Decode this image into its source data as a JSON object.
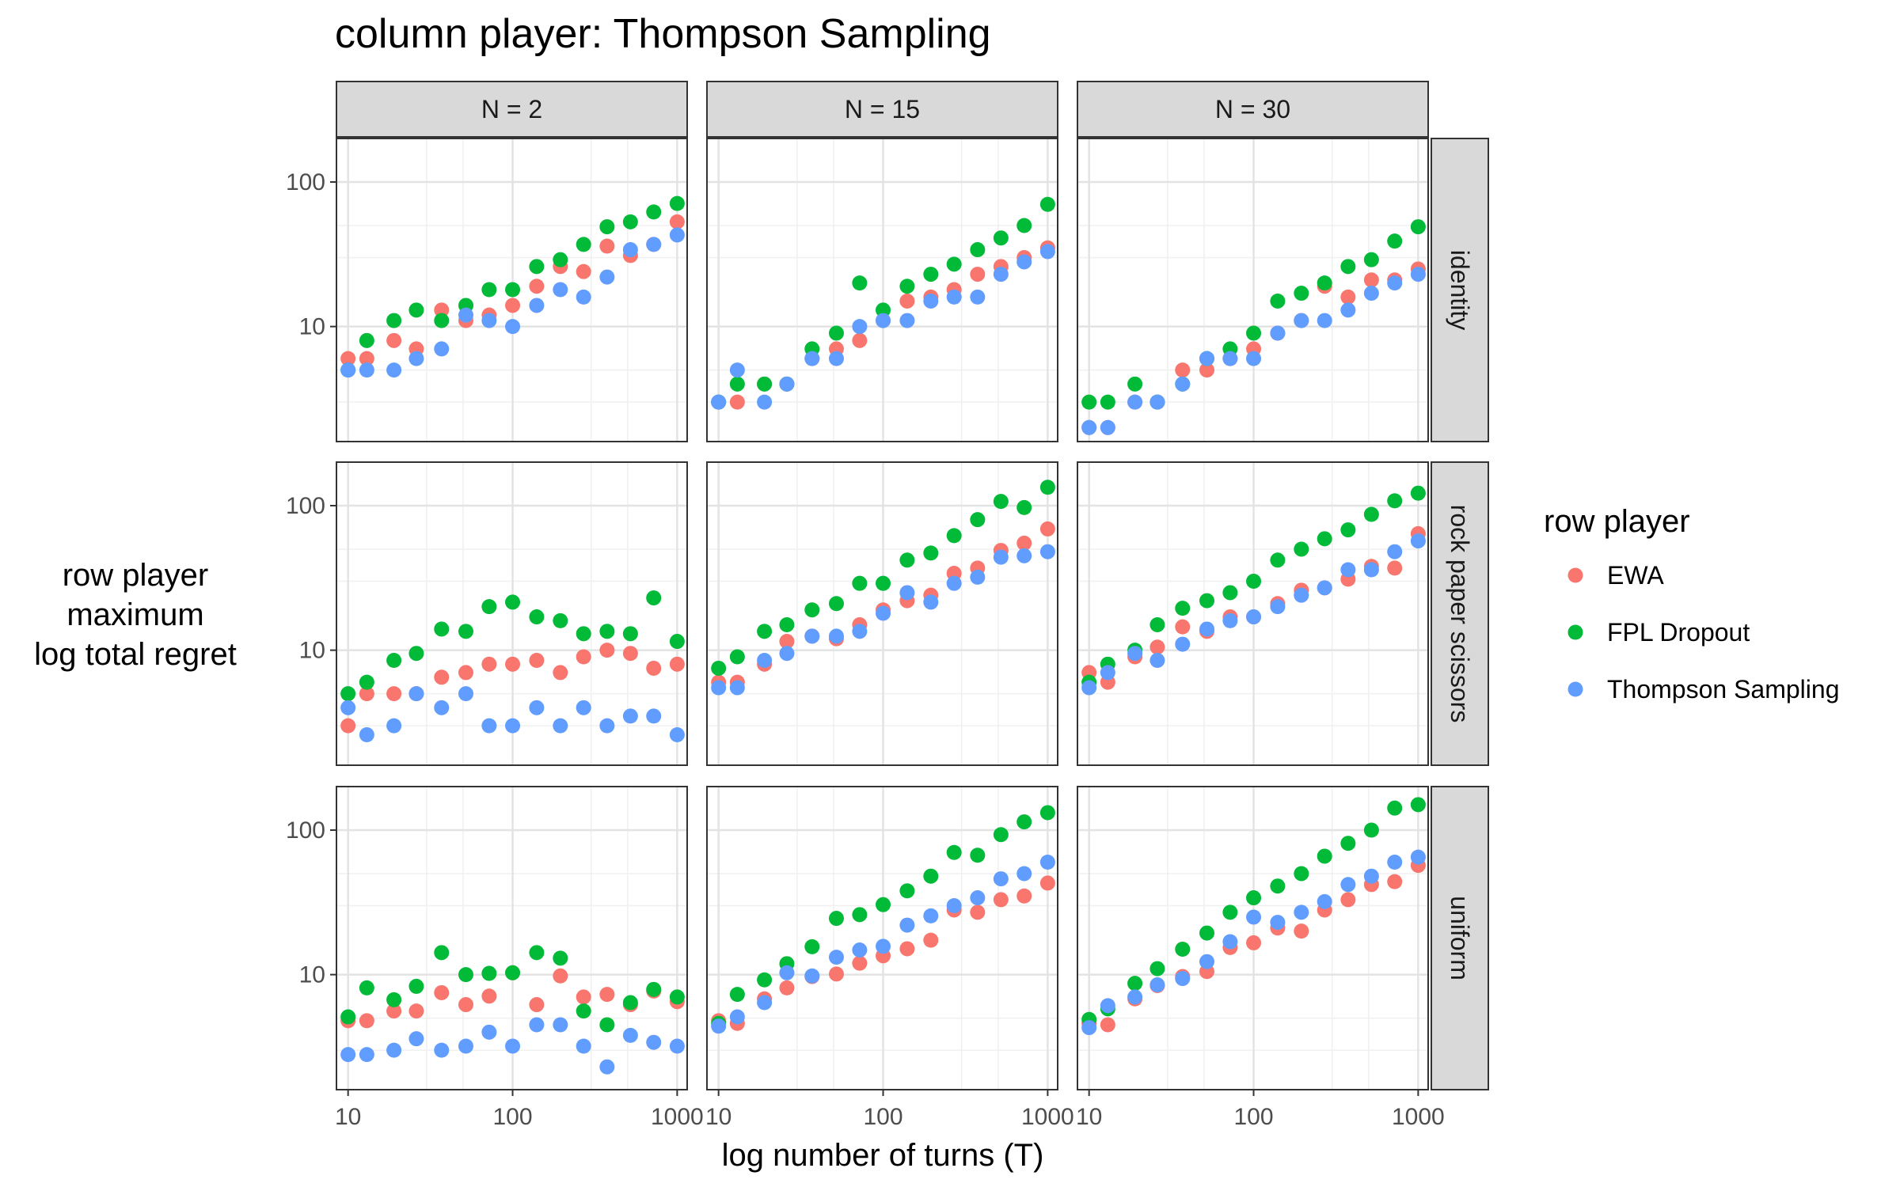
{
  "chart_data": {
    "type": "scatter",
    "title": "column player: Thompson Sampling",
    "xlabel": "log number of turns (T)",
    "ylabel_lines": [
      "row player",
      "maximum",
      "log total regret"
    ],
    "x_scale": "log10",
    "y_scale": "log10",
    "xlim": [
      8.5,
      1150
    ],
    "ylim": [
      1.6,
      200
    ],
    "x_ticks": [
      10,
      100,
      1000
    ],
    "x_tick_labels": [
      "10",
      "100",
      "1000"
    ],
    "y_ticks": [
      10,
      100
    ],
    "y_tick_labels": [
      "10",
      "100"
    ],
    "grid": true,
    "legend": {
      "title": "row player",
      "position": "right",
      "entries": [
        {
          "name": "EWA",
          "color": "#F8766D"
        },
        {
          "name": "FPL Dropout",
          "color": "#00BA38"
        },
        {
          "name": "Thompson Sampling",
          "color": "#619CFF"
        }
      ]
    },
    "col_facets": [
      "N = 2",
      "N = 15",
      "N = 30"
    ],
    "row_facets": [
      "identity",
      "rock paper scissors",
      "uniform"
    ],
    "x": [
      10,
      13,
      19,
      26,
      37,
      52,
      72,
      100,
      140,
      195,
      270,
      375,
      520,
      720,
      1000
    ],
    "panels": [
      {
        "row": "identity",
        "col": "N = 2",
        "series": [
          {
            "name": "EWA",
            "values": [
              6,
              6,
              8,
              7,
              13,
              11,
              12,
              14,
              19,
              26,
              24,
              36,
              31,
              37,
              53
            ]
          },
          {
            "name": "FPL Dropout",
            "values": [
              5,
              8,
              11,
              13,
              11,
              14,
              18,
              18,
              26,
              29,
              37,
              49,
              53,
              62,
              71
            ]
          },
          {
            "name": "Thompson Sampling",
            "values": [
              5,
              5,
              5,
              6,
              7,
              12,
              11,
              10,
              14,
              18,
              16,
              22,
              34,
              37,
              43
            ]
          }
        ]
      },
      {
        "row": "identity",
        "col": "N = 15",
        "series": [
          {
            "name": "EWA",
            "values": [
              3,
              3,
              4,
              4,
              6,
              7,
              8,
              11,
              15,
              16,
              18,
              23,
              26,
              30,
              35
            ]
          },
          {
            "name": "FPL Dropout",
            "values": [
              3,
              4,
              4,
              4,
              7,
              9,
              20,
              13,
              19,
              23,
              27,
              34,
              41,
              50,
              70
            ]
          },
          {
            "name": "Thompson Sampling",
            "values": [
              3,
              5,
              3,
              4,
              6,
              6,
              10,
              11,
              11,
              15,
              16,
              16,
              23,
              28,
              33
            ]
          }
        ]
      },
      {
        "row": "identity",
        "col": "N = 30",
        "series": [
          {
            "name": "EWA",
            "values": [
              2,
              2,
              3,
              3,
              5,
              5,
              6,
              7,
              9,
              11,
              19,
              16,
              21,
              21,
              25
            ]
          },
          {
            "name": "FPL Dropout",
            "values": [
              3,
              3,
              4,
              3,
              4,
              6,
              7,
              9,
              15,
              17,
              20,
              26,
              29,
              39,
              49
            ]
          },
          {
            "name": "Thompson Sampling",
            "values": [
              2,
              2,
              3,
              3,
              4,
              6,
              6,
              6,
              9,
              11,
              11,
              13,
              17,
              20,
              23
            ]
          }
        ]
      },
      {
        "row": "rock paper scissors",
        "col": "N = 2",
        "series": [
          {
            "name": "EWA",
            "values": [
              3,
              5,
              5,
              5,
              6.5,
              7,
              8,
              8,
              8.5,
              7,
              9,
              10,
              9.5,
              7.5,
              8
            ]
          },
          {
            "name": "FPL Dropout",
            "values": [
              5,
              6,
              8.5,
              9.5,
              14,
              13.5,
              20,
              21.5,
              17,
              16,
              13,
              13.5,
              13,
              23,
              11.5
            ]
          },
          {
            "name": "Thompson Sampling",
            "values": [
              4,
              2.6,
              3,
              5,
              4,
              5,
              3,
              3,
              4,
              3,
              4,
              3,
              3.5,
              3.5,
              2.6
            ]
          }
        ]
      },
      {
        "row": "rock paper scissors",
        "col": "N = 15",
        "series": [
          {
            "name": "EWA",
            "values": [
              6,
              6,
              8,
              11.5,
              12.5,
              12,
              15,
              19,
              22,
              24,
              34,
              37,
              49,
              55,
              69
            ]
          },
          {
            "name": "FPL Dropout",
            "values": [
              7.5,
              9,
              13.5,
              15,
              19,
              21,
              29,
              29,
              42,
              47,
              62,
              80,
              107,
              97,
              134
            ]
          },
          {
            "name": "Thompson Sampling",
            "values": [
              5.5,
              5.5,
              8.5,
              9.5,
              12.5,
              12.5,
              13.5,
              18,
              25,
              21.5,
              29,
              32,
              44,
              45,
              48
            ]
          }
        ]
      },
      {
        "row": "rock paper scissors",
        "col": "N = 30",
        "series": [
          {
            "name": "EWA",
            "values": [
              7,
              6,
              9,
              10.5,
              14.5,
              13.5,
              17,
              17,
              21,
              26,
              27,
              31,
              38,
              37,
              64
            ]
          },
          {
            "name": "FPL Dropout",
            "values": [
              6,
              8,
              10,
              15,
              19.5,
              22,
              25,
              30,
              42,
              50,
              59,
              68,
              87,
              108,
              122
            ]
          },
          {
            "name": "Thompson Sampling",
            "values": [
              5.5,
              7,
              9.5,
              8.5,
              11,
              14,
              16,
              17,
              20,
              24,
              27,
              36,
              36,
              48,
              57
            ]
          }
        ]
      },
      {
        "row": "uniform",
        "col": "N = 2",
        "series": [
          {
            "name": "EWA",
            "values": [
              4.8,
              4.8,
              5.6,
              5.6,
              7.5,
              6.2,
              7.1,
              10.3,
              6.2,
              9.8,
              7,
              7.3,
              6.2,
              7.7,
              6.5
            ]
          },
          {
            "name": "FPL Dropout",
            "values": [
              5.1,
              8.1,
              6.7,
              8.3,
              14.2,
              10,
              10.2,
              10.3,
              14.2,
              13,
              5.6,
              4.5,
              6.4,
              7.9,
              7
            ]
          },
          {
            "name": "Thompson Sampling",
            "values": [
              2.8,
              2.8,
              3,
              3.6,
              3,
              3.2,
              4,
              3.2,
              4.5,
              4.5,
              3.2,
              2.3,
              3.8,
              3.4,
              3.2
            ]
          }
        ]
      },
      {
        "row": "uniform",
        "col": "N = 15",
        "series": [
          {
            "name": "EWA",
            "values": [
              4.8,
              4.6,
              6.8,
              8.1,
              9.7,
              10.1,
              12,
              13.5,
              15.1,
              17.3,
              28,
              27,
              33,
              35,
              43
            ]
          },
          {
            "name": "FPL Dropout",
            "values": [
              4.6,
              7.3,
              9.2,
              11.9,
              15.6,
              24.5,
              26,
              30.5,
              38,
              48,
              70,
              67,
              93,
              114,
              132
            ]
          },
          {
            "name": "Thompson Sampling",
            "values": [
              4.4,
              5.1,
              6.4,
              10.3,
              9.8,
              13.2,
              14.8,
              15.7,
              22,
              25.5,
              30,
              34,
              46,
              50,
              60
            ]
          }
        ]
      },
      {
        "row": "uniform",
        "col": "N = 30",
        "series": [
          {
            "name": "EWA",
            "values": [
              4.6,
              4.5,
              6.8,
              8.4,
              9.7,
              10.5,
              15.4,
              16.6,
              21,
              20,
              28,
              33,
              42,
              44,
              57
            ]
          },
          {
            "name": "FPL Dropout",
            "values": [
              4.9,
              5.8,
              8.7,
              11,
              15,
              19.4,
              27,
              34,
              41,
              50,
              66,
              81,
              100,
              142,
              150
            ]
          },
          {
            "name": "Thompson Sampling",
            "values": [
              4.3,
              6.1,
              7,
              8.5,
              9.4,
              12.3,
              16.9,
              25,
              23,
              27,
              32,
              42,
              48,
              60,
              65
            ]
          }
        ]
      }
    ]
  }
}
